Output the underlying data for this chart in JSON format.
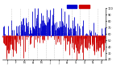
{
  "bg_color": "#ffffff",
  "bar_color_above": "#0000cc",
  "bar_color_below": "#cc0000",
  "legend_above_color": "#0000cc",
  "legend_below_color": "#cc0000",
  "ylim": [
    20,
    100
  ],
  "ytick_labels": [
    "100",
    "90",
    "80",
    "70",
    "60",
    "50",
    "40",
    "30",
    "20"
  ],
  "ytick_vals": [
    100,
    90,
    80,
    70,
    60,
    50,
    40,
    30,
    20
  ],
  "num_points": 365,
  "seed": 42,
  "avg_humidity": 58,
  "grid_color": "#aaaaaa",
  "grid_alpha": 0.8,
  "num_months": 12
}
